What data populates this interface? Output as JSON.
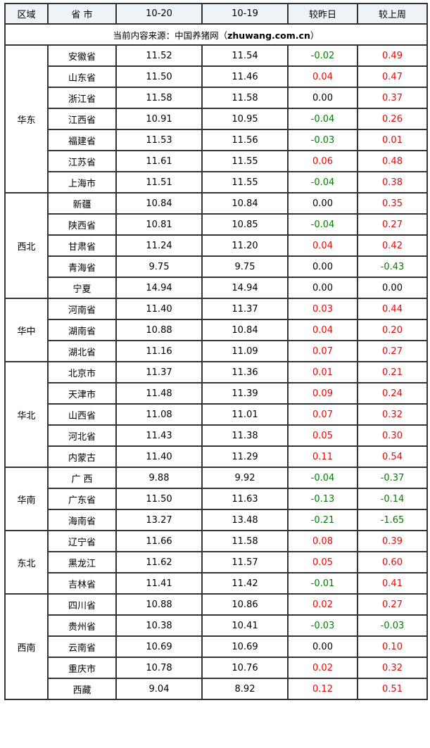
{
  "headers": [
    "区域",
    "省 市",
    "10-20",
    "10-19",
    "较昨日",
    "较上周"
  ],
  "source": {
    "prefix": "当前内容来源：中国养猪网（",
    "site": "zhuwang.com.cn",
    "suffix": "）"
  },
  "colors": {
    "up": "#ff0000",
    "down": "#008000",
    "flat": "#000000",
    "header_bg": "#eef3f8"
  },
  "regions": [
    {
      "name": "华东",
      "rows": [
        [
          "安徽省",
          "11.52",
          "11.54",
          "-0.02",
          "0.49"
        ],
        [
          "山东省",
          "11.50",
          "11.46",
          "0.04",
          "0.47"
        ],
        [
          "浙江省",
          "11.58",
          "11.58",
          "0.00",
          "0.37"
        ],
        [
          "江西省",
          "10.91",
          "10.95",
          "-0.04",
          "0.26"
        ],
        [
          "福建省",
          "11.53",
          "11.56",
          "-0.03",
          "0.01"
        ],
        [
          "江苏省",
          "11.61",
          "11.55",
          "0.06",
          "0.48"
        ],
        [
          "上海市",
          "11.51",
          "11.55",
          "-0.04",
          "0.38"
        ]
      ]
    },
    {
      "name": "西北",
      "rows": [
        [
          "新疆",
          "10.84",
          "10.84",
          "0.00",
          "0.35"
        ],
        [
          "陕西省",
          "10.81",
          "10.85",
          "-0.04",
          "0.27"
        ],
        [
          "甘肃省",
          "11.24",
          "11.20",
          "0.04",
          "0.42"
        ],
        [
          "青海省",
          "9.75",
          "9.75",
          "0.00",
          "-0.43"
        ],
        [
          "宁夏",
          "14.94",
          "14.94",
          "0.00",
          "0.00"
        ]
      ]
    },
    {
      "name": "华中",
      "rows": [
        [
          "河南省",
          "11.40",
          "11.37",
          "0.03",
          "0.44"
        ],
        [
          "湖南省",
          "10.88",
          "10.84",
          "0.04",
          "0.20"
        ],
        [
          "湖北省",
          "11.16",
          "11.09",
          "0.07",
          "0.27"
        ]
      ]
    },
    {
      "name": "华北",
      "rows": [
        [
          "北京市",
          "11.37",
          "11.36",
          "0.01",
          "0.21"
        ],
        [
          "天津市",
          "11.48",
          "11.39",
          "0.09",
          "0.24"
        ],
        [
          "山西省",
          "11.08",
          "11.01",
          "0.07",
          "0.32"
        ],
        [
          "河北省",
          "11.43",
          "11.38",
          "0.05",
          "0.30"
        ],
        [
          "内蒙古",
          "11.40",
          "11.29",
          "0.11",
          "0.54"
        ]
      ]
    },
    {
      "name": "华南",
      "rows": [
        [
          "广 西",
          "9.88",
          "9.92",
          "-0.04",
          "-0.37"
        ],
        [
          "广东省",
          "11.50",
          "11.63",
          "-0.13",
          "-0.14"
        ],
        [
          "海南省",
          "13.27",
          "13.48",
          "-0.21",
          "-1.65"
        ]
      ]
    },
    {
      "name": "东北",
      "rows": [
        [
          "辽宁省",
          "11.66",
          "11.58",
          "0.08",
          "0.39"
        ],
        [
          "黑龙江",
          "11.62",
          "11.57",
          "0.05",
          "0.60"
        ],
        [
          "吉林省",
          "11.41",
          "11.42",
          "-0.01",
          "0.41"
        ]
      ]
    },
    {
      "name": "西南",
      "rows": [
        [
          "四川省",
          "10.88",
          "10.86",
          "0.02",
          "0.27"
        ],
        [
          "贵州省",
          "10.38",
          "10.41",
          "-0.03",
          "-0.03"
        ],
        [
          "云南省",
          "10.69",
          "10.69",
          "0.00",
          "0.10"
        ],
        [
          "重庆市",
          "10.78",
          "10.76",
          "0.02",
          "0.32"
        ],
        [
          "西藏",
          "9.04",
          "8.92",
          "0.12",
          "0.51"
        ]
      ]
    }
  ]
}
